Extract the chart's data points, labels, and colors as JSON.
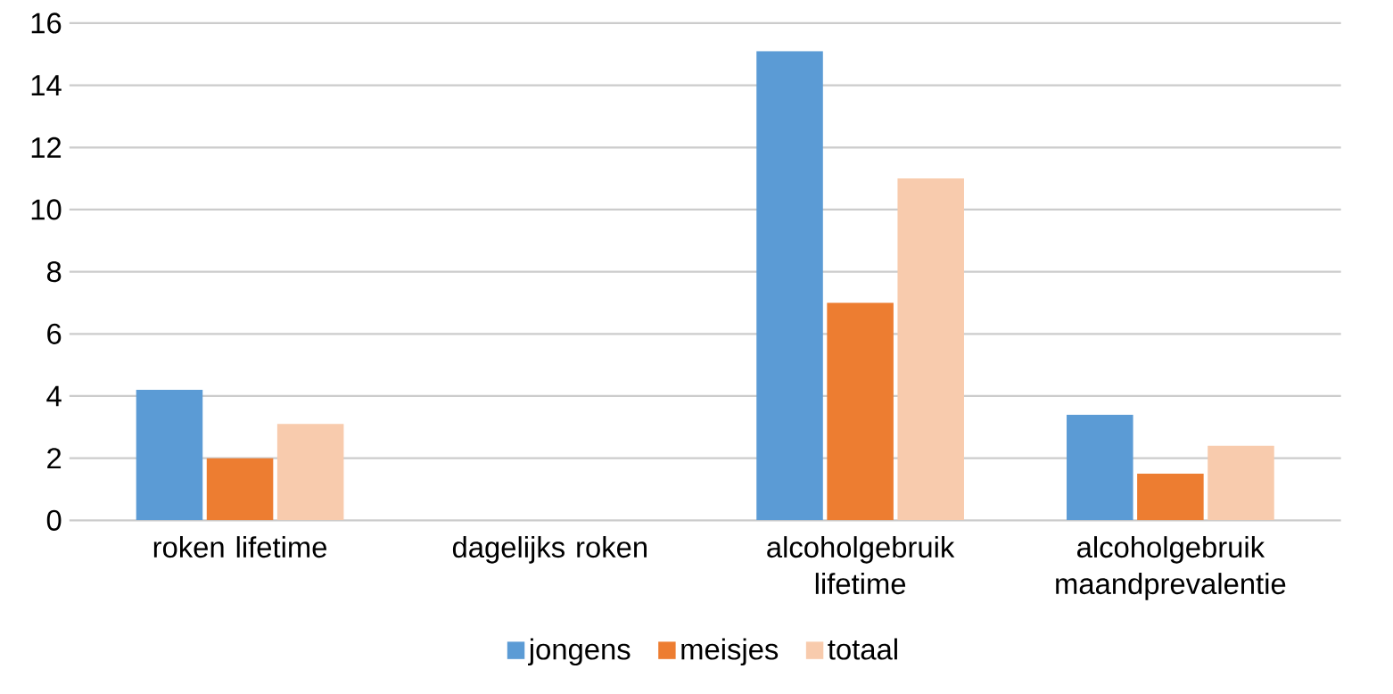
{
  "chart_data": {
    "type": "bar",
    "categories": [
      "roken lifetime",
      "dagelijks roken",
      "alcoholgebruik lifetime",
      "alcoholgebruik maandprevalentie"
    ],
    "series": [
      {
        "name": "jongens",
        "color": "#5b9bd5",
        "values": [
          4.2,
          0,
          15.1,
          3.4
        ]
      },
      {
        "name": "meisjes",
        "color": "#ed7d31",
        "values": [
          2.0,
          0,
          7.0,
          1.5
        ]
      },
      {
        "name": "totaal",
        "color": "#f8cbad",
        "values": [
          3.1,
          0,
          11.0,
          2.4
        ]
      }
    ],
    "ylim": [
      0,
      16
    ],
    "yticks": [
      0,
      2,
      4,
      6,
      8,
      10,
      12,
      14,
      16
    ],
    "grid": "y",
    "legend": "bottom"
  }
}
